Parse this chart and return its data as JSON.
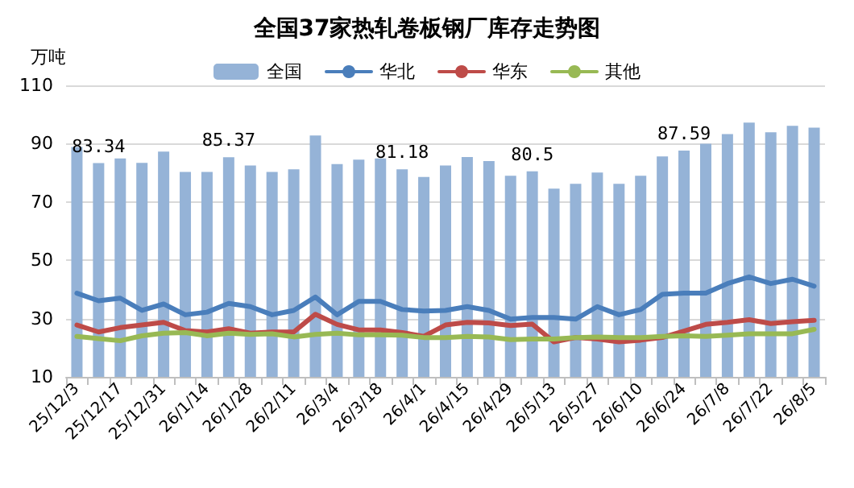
{
  "chart_data": {
    "type": "bar",
    "title": "全国37家热轧卷板钢厂库存走势图",
    "ylabel": "万吨",
    "categories": [
      "25/12/3",
      null,
      "25/12/17",
      null,
      "25/12/31",
      null,
      "26/1/14",
      null,
      "26/1/28",
      null,
      "26/2/11",
      null,
      "26/3/4",
      null,
      "26/3/18",
      null,
      "26/4/1",
      null,
      "26/4/15",
      null,
      "26/4/29",
      null,
      "26/5/13",
      null,
      "26/5/27",
      null,
      "26/6/10",
      null,
      "26/6/24",
      null,
      "26/7/8",
      null,
      "26/7/22",
      null,
      "26/8/5"
    ],
    "series": [
      {
        "name": "全国",
        "color": "#95b3d7",
        "values": [
          88.9,
          83.34,
          84.9,
          83.4,
          87.3,
          80.3,
          80.3,
          85.37,
          82.5,
          80.3,
          81.2,
          92.8,
          83,
          84.5,
          84.9,
          81.18,
          78.6,
          82.5,
          85.4,
          84,
          79,
          80.5,
          74.6,
          76.2,
          80.1,
          76.2,
          79,
          85.6,
          87.59,
          90,
          93.3,
          97.2,
          93.9,
          96.1,
          95.5
        ],
        "value_labels": [
          null,
          "83.34",
          null,
          null,
          null,
          null,
          null,
          "85.37",
          null,
          null,
          null,
          null,
          null,
          null,
          null,
          "81.18",
          null,
          null,
          null,
          null,
          null,
          "80.5",
          null,
          null,
          null,
          null,
          null,
          null,
          "87.59",
          null,
          null,
          null,
          null,
          null,
          null
        ]
      },
      {
        "name": "华北",
        "type": "line",
        "color": "#4a7ebb",
        "values": [
          38.7,
          36.1,
          37,
          32.8,
          35,
          31.3,
          32.2,
          35.2,
          34.1,
          31.3,
          32.8,
          37.4,
          31.3,
          35.9,
          35.9,
          33.1,
          32.6,
          32.8,
          34.1,
          32.8,
          29.8,
          30.4,
          30.4,
          29.8,
          34.1,
          31.3,
          33.1,
          38.3,
          38.7,
          38.7,
          42,
          44.3,
          42,
          43.5,
          41.1
        ]
      },
      {
        "name": "华东",
        "type": "line",
        "color": "#be4b48",
        "values": [
          27.8,
          25.4,
          26.9,
          27.8,
          28.7,
          25.9,
          25.4,
          26.5,
          25,
          25.4,
          25.4,
          31.5,
          28,
          26.1,
          26.1,
          25.2,
          23.9,
          27.8,
          28.7,
          28.5,
          27.6,
          28.1,
          22,
          23.5,
          23,
          22,
          22.6,
          23.5,
          25.7,
          28,
          28.7,
          29.6,
          28.3,
          28.9,
          29.4
        ]
      },
      {
        "name": "其他",
        "type": "line",
        "color": "#98b954",
        "values": [
          23.9,
          23.1,
          22.4,
          24.1,
          25,
          25.2,
          24.1,
          25,
          24.6,
          24.8,
          23.7,
          24.6,
          25,
          24.4,
          24.4,
          24.3,
          23.5,
          23.5,
          23.9,
          23.7,
          22.8,
          23,
          23,
          23.5,
          23.7,
          23.5,
          23.5,
          23.9,
          24.1,
          23.9,
          24.3,
          24.8,
          24.8,
          24.8,
          26.3
        ]
      }
    ],
    "ylim": [
      10,
      110
    ],
    "yticks": [
      10,
      30,
      50,
      70,
      90,
      110
    ],
    "grid": "y",
    "legend": "top",
    "marker": "none",
    "line_style": "solid"
  }
}
